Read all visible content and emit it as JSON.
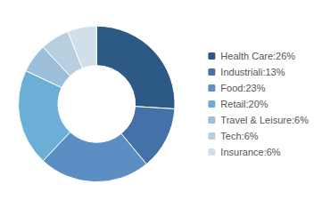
{
  "chart_data": {
    "type": "pie",
    "categories": [
      "Health Care:26%",
      "Industriali:13%",
      "Food:23%",
      "Retail:20%",
      "Travel & Leisure:6%",
      "Tech:6%",
      "Insurance:6%"
    ],
    "values": [
      26,
      13,
      23,
      20,
      6,
      6,
      6
    ],
    "colors": [
      "#2d5986",
      "#4472a8",
      "#5b8fc4",
      "#6baed6",
      "#9bbfdb",
      "#b8cfe0",
      "#d0dfe9"
    ],
    "legend": "right"
  }
}
